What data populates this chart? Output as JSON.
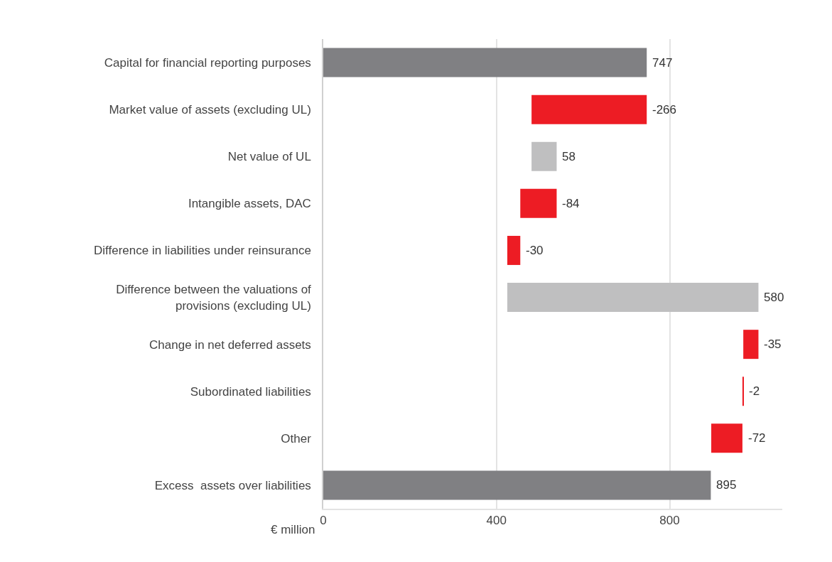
{
  "chart_data": {
    "type": "bar",
    "orientation": "horizontal",
    "xlabel": "€ million",
    "categories": [
      "Capital for financial reporting purposes",
      "Market value of assets (excluding UL)",
      "Net value of UL",
      "Intangible assets, DAC",
      "Difference in liabilities under reinsurance",
      "Difference between the valuations of provisions (excluding UL)",
      "Change in net deferred assets",
      "Subordinated liabilities",
      "Other",
      "Excess  assets over liabilities"
    ],
    "values": [
      747,
      -266,
      58,
      -84,
      -30,
      580,
      -35,
      -2,
      -72,
      895
    ],
    "base": [
      0,
      747,
      481,
      539,
      455,
      425,
      1005,
      970,
      968,
      0
    ],
    "colors": [
      "#808083",
      "#ed1c24",
      "#bfbfc0",
      "#ed1c24",
      "#ed1c24",
      "#bfbfc0",
      "#ed1c24",
      "#ed1c24",
      "#ed1c24",
      "#808083"
    ],
    "data_labels": true,
    "xlim": [
      0,
      1060
    ],
    "xticks": [
      0,
      400,
      800
    ],
    "grid": "x"
  }
}
